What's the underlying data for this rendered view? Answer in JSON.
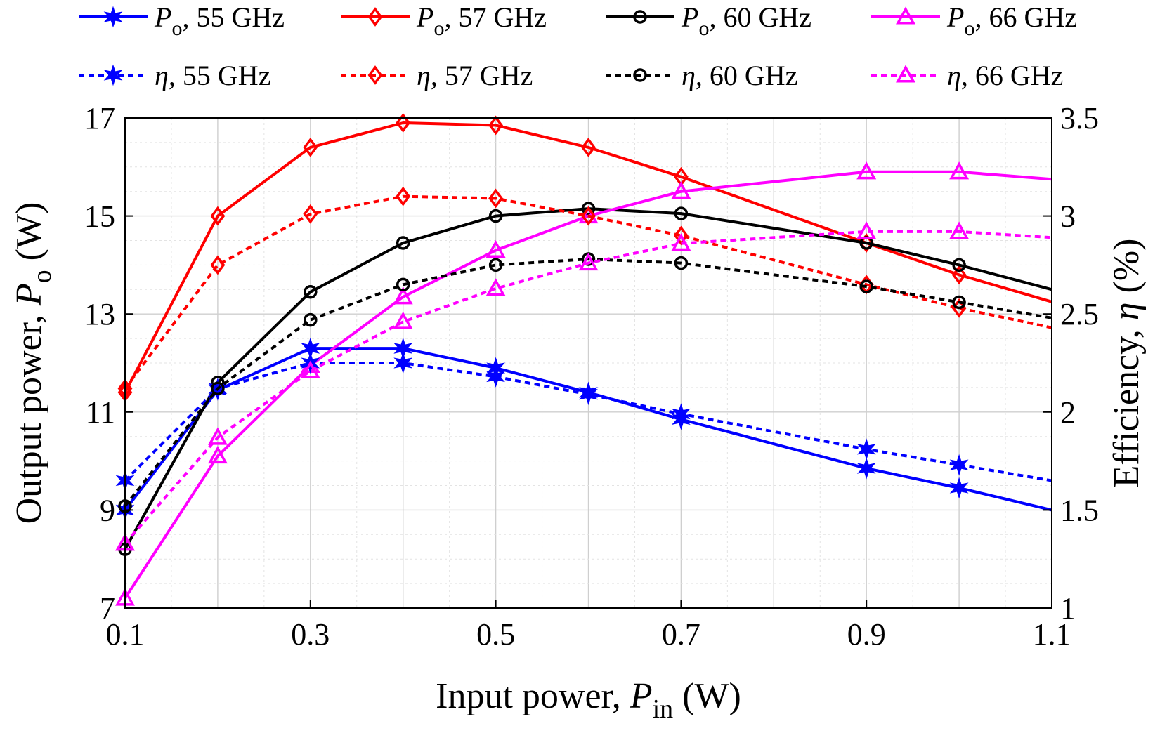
{
  "chart_data": {
    "type": "line",
    "x": [
      0.1,
      0.2,
      0.3,
      0.4,
      0.5,
      0.6,
      0.7,
      0.9,
      1.0,
      1.1
    ],
    "xlabel": {
      "main": "Input power, ",
      "sym": "P",
      "sub": "in",
      "unit": " (W)"
    },
    "ylabel": {
      "main": "Output power, ",
      "sym": "P",
      "sub": "o",
      "unit": " (W)"
    },
    "y2label": {
      "main": "Efficiency, ",
      "sym": "η",
      "unit": " (%)"
    },
    "xlim": [
      0.1,
      1.1
    ],
    "ylim": [
      7,
      17
    ],
    "y2lim": [
      1,
      3.5
    ],
    "xticks": [
      "0.1",
      "0.3",
      "0.5",
      "0.7",
      "0.9",
      "1.1"
    ],
    "yticks": [
      "7",
      "9",
      "11",
      "13",
      "15",
      "17"
    ],
    "y2ticks": [
      "1",
      "1.5",
      "2",
      "2.5",
      "3",
      "3.5"
    ],
    "grid": true,
    "legend_position": "top",
    "series": [
      {
        "name": "55 GHz",
        "legend_sym": "P",
        "legend_sub": "o",
        "legend_rest": ", 55 GHz",
        "axis": "left",
        "color": "#0000ff",
        "dash": false,
        "marker": "star",
        "values": [
          9.0,
          11.45,
          12.3,
          12.3,
          11.9,
          11.4,
          10.85,
          9.85,
          9.45,
          9.0
        ]
      },
      {
        "name": "57 GHz",
        "legend_sym": "P",
        "legend_sub": "o",
        "legend_rest": ", 57 GHz",
        "axis": "left",
        "color": "#ff0000",
        "dash": false,
        "marker": "diamond",
        "values": [
          11.4,
          15.0,
          16.4,
          16.9,
          16.85,
          16.4,
          15.8,
          14.45,
          13.8,
          13.25
        ]
      },
      {
        "name": "60 GHz",
        "legend_sym": "P",
        "legend_sub": "o",
        "legend_rest": ", 60 GHz",
        "axis": "left",
        "color": "#000000",
        "dash": false,
        "marker": "circle",
        "values": [
          8.2,
          11.6,
          13.45,
          14.45,
          15.0,
          15.15,
          15.05,
          14.45,
          14.0,
          13.5
        ]
      },
      {
        "name": "66 GHz",
        "legend_sym": "P",
        "legend_sub": "o",
        "legend_rest": ", 66 GHz",
        "axis": "left",
        "color": "#ff00ff",
        "dash": false,
        "marker": "triangle",
        "values": [
          7.2,
          10.1,
          11.95,
          13.35,
          14.3,
          15.0,
          15.5,
          15.9,
          15.9,
          15.75
        ]
      },
      {
        "name": "η 55 GHz",
        "legend_sym": "η",
        "legend_sub": "",
        "legend_rest": ", 55 GHz",
        "axis": "right",
        "color": "#0000ff",
        "dash": true,
        "marker": "star",
        "values": [
          1.65,
          2.12,
          2.25,
          2.25,
          2.18,
          2.09,
          1.99,
          1.81,
          1.73,
          1.65
        ]
      },
      {
        "name": "η 57 GHz",
        "legend_sym": "η",
        "legend_sub": "",
        "legend_rest": ", 57 GHz",
        "axis": "right",
        "color": "#ff0000",
        "dash": true,
        "marker": "diamond",
        "values": [
          2.12,
          2.75,
          3.01,
          3.1,
          3.09,
          3.0,
          2.9,
          2.65,
          2.53,
          2.43
        ]
      },
      {
        "name": "η 60 GHz",
        "legend_sym": "η",
        "legend_sub": "",
        "legend_rest": ", 60 GHz",
        "axis": "right",
        "color": "#000000",
        "dash": true,
        "marker": "circle",
        "values": [
          1.52,
          2.12,
          2.47,
          2.65,
          2.75,
          2.78,
          2.76,
          2.64,
          2.56,
          2.48
        ]
      },
      {
        "name": "η 66 GHz",
        "legend_sym": "η",
        "legend_sub": "",
        "legend_rest": ", 66 GHz",
        "axis": "right",
        "color": "#ff00ff",
        "dash": true,
        "marker": "triangle",
        "values": [
          1.33,
          1.87,
          2.21,
          2.46,
          2.63,
          2.76,
          2.86,
          2.92,
          2.92,
          2.89
        ]
      }
    ]
  }
}
